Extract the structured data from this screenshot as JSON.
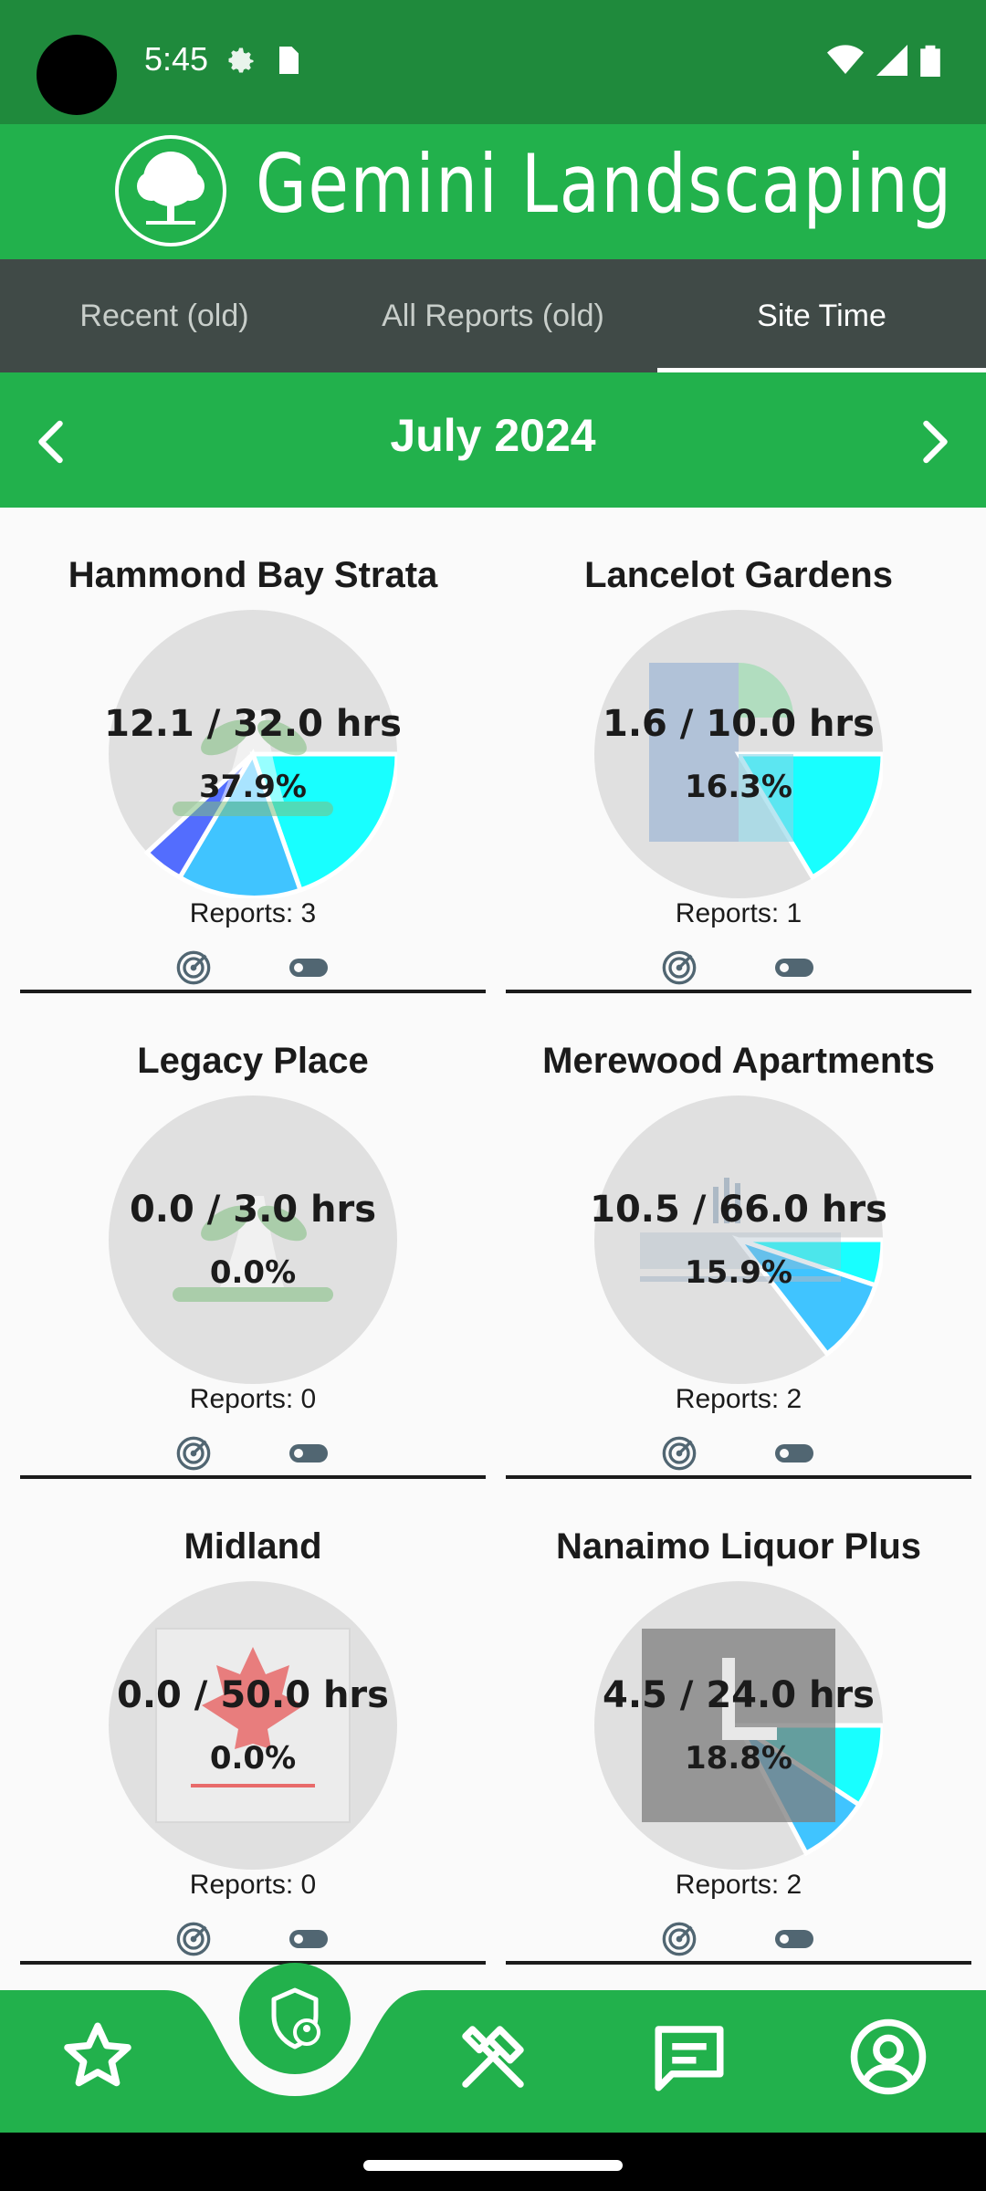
{
  "status": {
    "time": "5:45"
  },
  "app": {
    "title": "Gemini Landscaping"
  },
  "tabs": [
    {
      "label": "Recent (old)"
    },
    {
      "label": "All Reports (old)"
    },
    {
      "label": "Site Time"
    }
  ],
  "month": {
    "label": "July 2024"
  },
  "sites": [
    {
      "name": "Hammond Bay Strata",
      "hours": "12.1 / 32.0 hrs",
      "percent": "37.9%",
      "reports": "Reports: 3"
    },
    {
      "name": "Lancelot Gardens",
      "hours": "1.6 / 10.0 hrs",
      "percent": "16.3%",
      "reports": "Reports: 1"
    },
    {
      "name": "Legacy Place",
      "hours": "0.0 / 3.0 hrs",
      "percent": "0.0%",
      "reports": "Reports: 0"
    },
    {
      "name": "Merewood Apartments",
      "hours": "10.5 / 66.0 hrs",
      "percent": "15.9%",
      "reports": "Reports: 2"
    },
    {
      "name": "Midland",
      "hours": "0.0 / 50.0 hrs",
      "percent": "0.0%",
      "reports": "Reports: 0"
    },
    {
      "name": "Nanaimo Liquor Plus",
      "hours": "4.5 / 24.0 hrs",
      "percent": "18.8%",
      "reports": "Reports: 2"
    }
  ],
  "colors": {
    "header_green": "#22b14c",
    "status_green": "#1f8a3c",
    "tab_bar": "#404a47",
    "pie_track": "#e0e0e0",
    "cyan": "#18ffff",
    "sky": "#40c4ff",
    "indigo": "#536dfe"
  },
  "icons": {
    "nav": [
      "star-icon",
      "admin-shield-icon",
      "tools-icon",
      "chat-icon",
      "account-icon"
    ]
  }
}
